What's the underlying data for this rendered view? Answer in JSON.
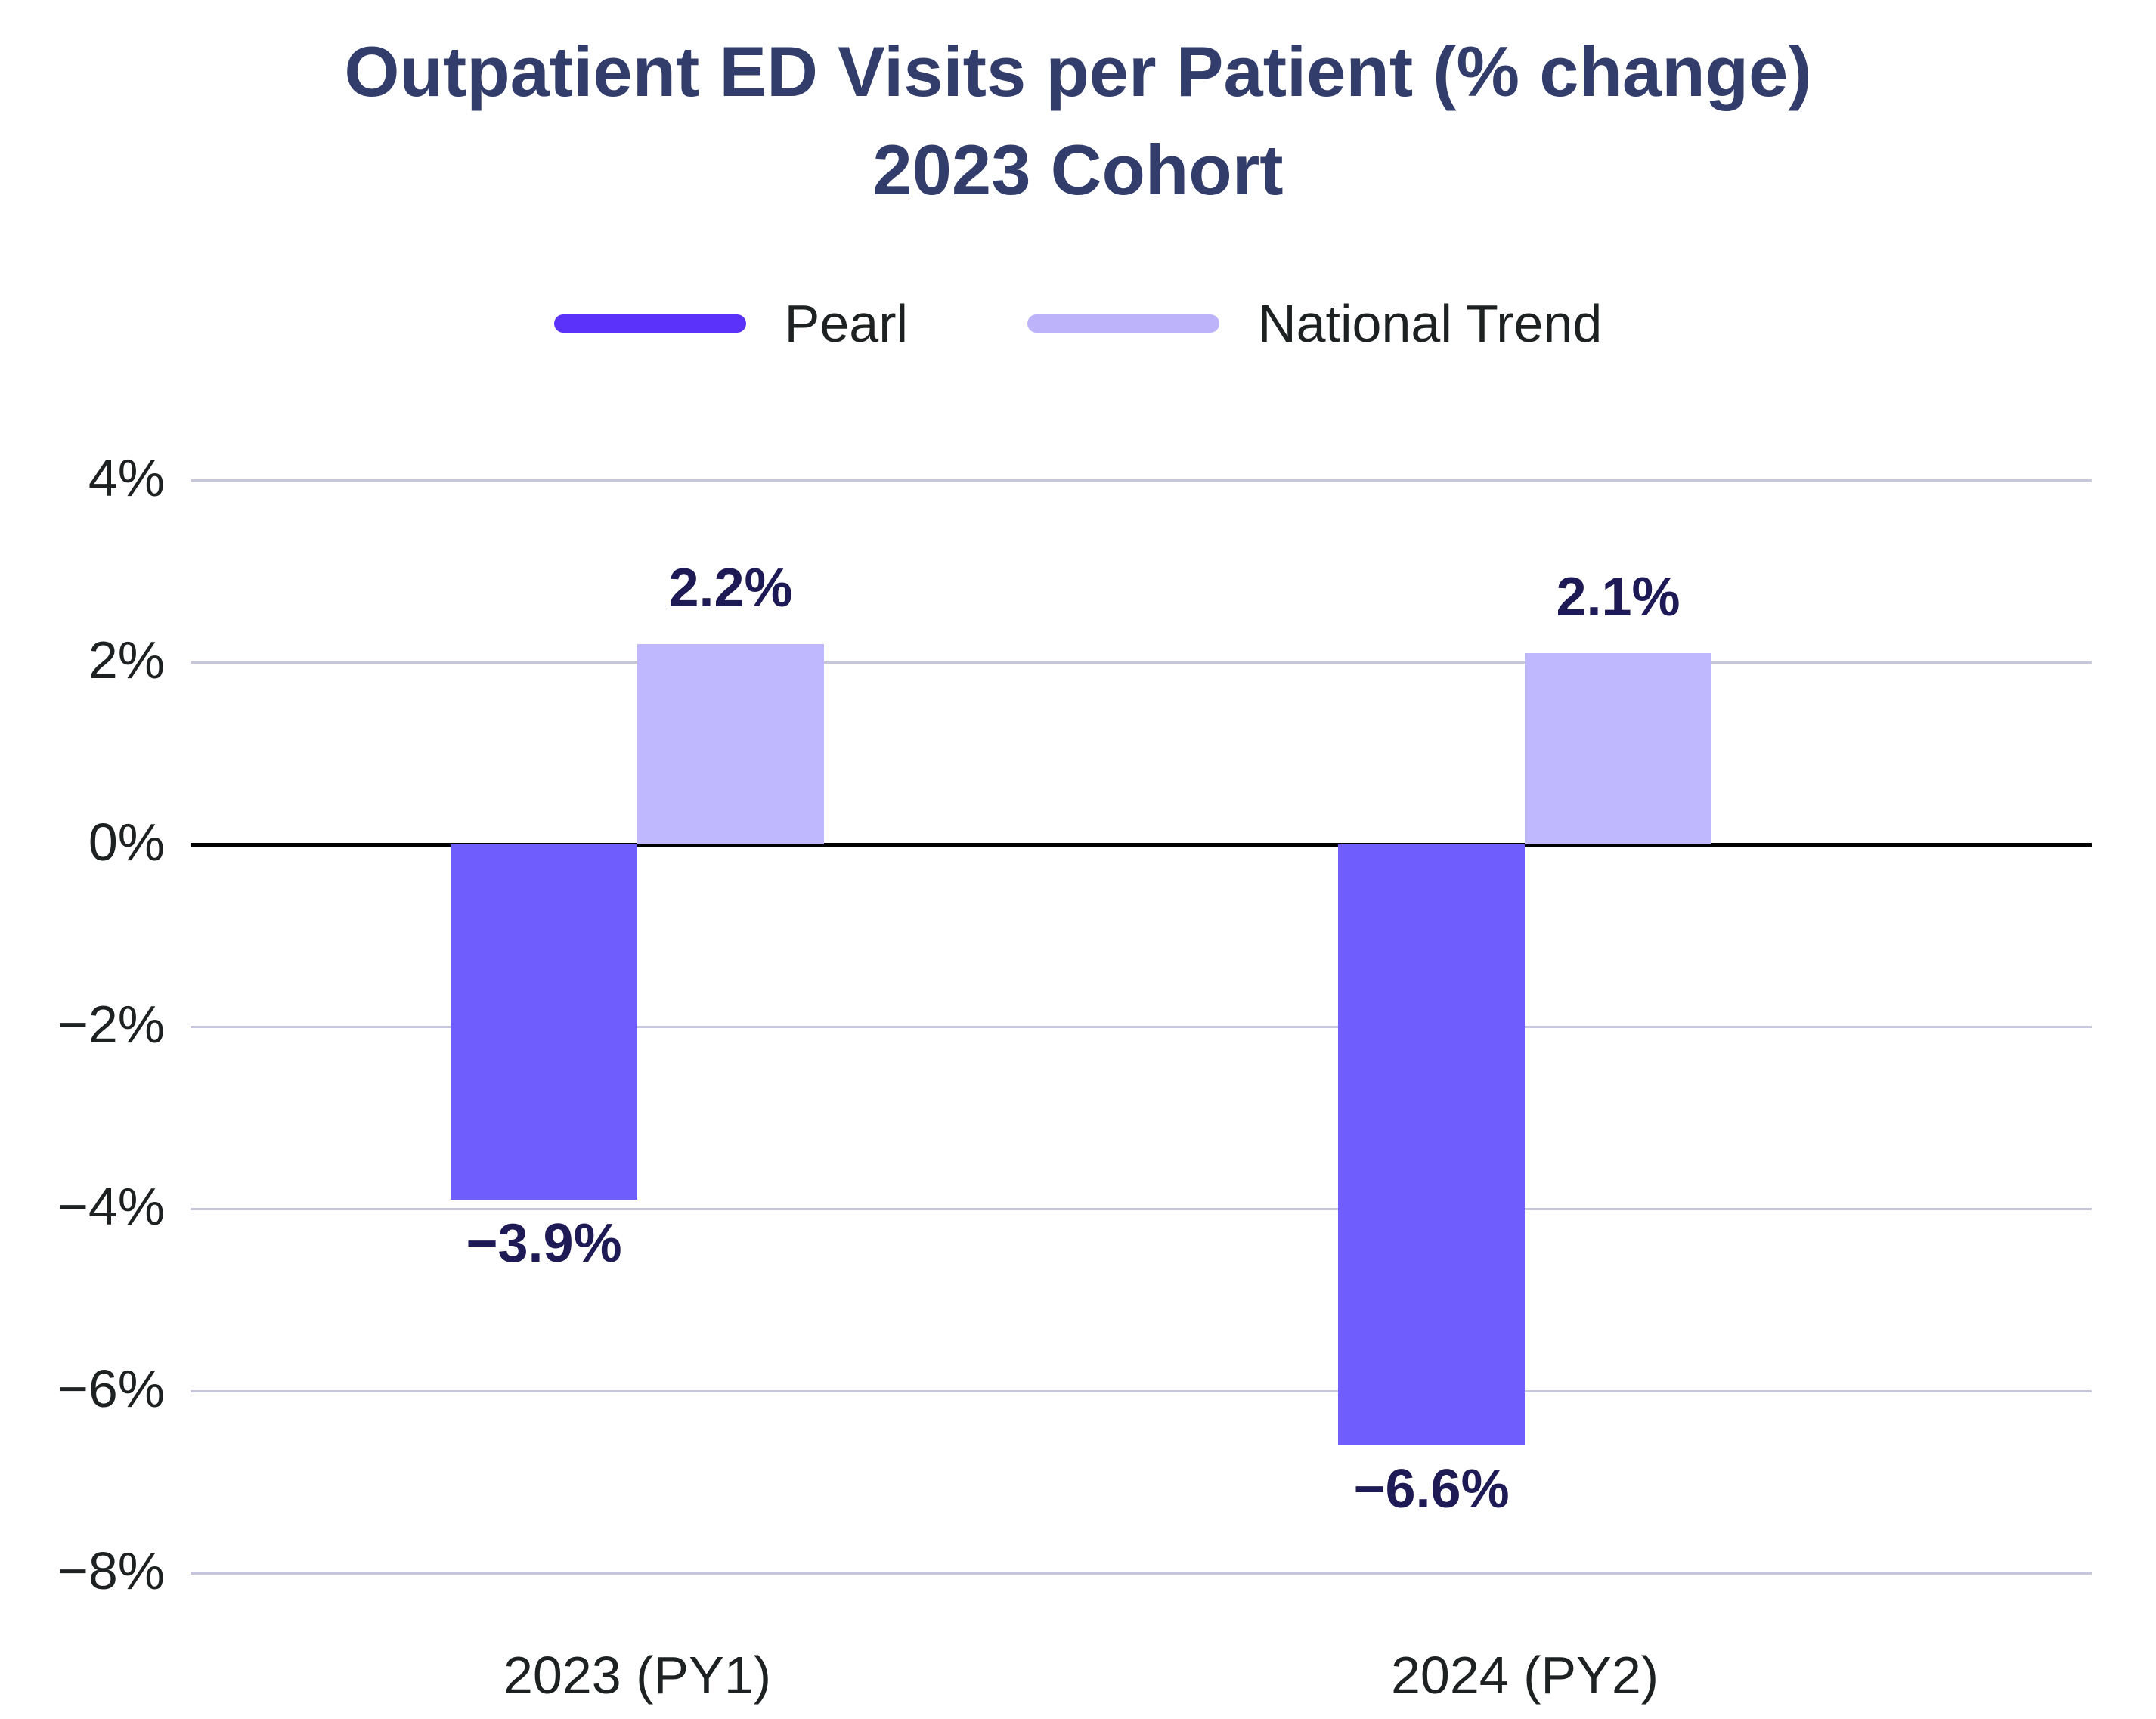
{
  "title": {
    "line1": "Outpatient ED Visits per Patient (% change)",
    "line2": "2023 Cohort"
  },
  "legend": [
    {
      "label": "Pearl",
      "color": "#5A32FA"
    },
    {
      "label": "National Trend",
      "color": "#BDB3FB"
    }
  ],
  "colors": {
    "title": "#333D6B",
    "axis_text": "#1E2121",
    "value_label": "#1E1A55",
    "gridline": "#C5C6DB",
    "zero_line": "#000000",
    "pearl_bar": "#6F5DFD",
    "national_bar": "#C0B8FE"
  },
  "chart_data": {
    "type": "bar",
    "title": "Outpatient ED Visits per Patient (% change) 2023 Cohort",
    "xlabel": "",
    "ylabel": "",
    "categories": [
      "2023 (PY1)",
      "2024 (PY2)"
    ],
    "series": [
      {
        "name": "Pearl",
        "values": [
          -3.9,
          -6.6
        ],
        "labels": [
          "−3.9%",
          "−6.6%"
        ],
        "color": "#6F5DFD"
      },
      {
        "name": "National Trend",
        "values": [
          2.2,
          2.1
        ],
        "labels": [
          "2.2%",
          "2.1%"
        ],
        "color": "#C0B8FE"
      }
    ],
    "ylim": [
      -8,
      4
    ],
    "ytick_step": 2,
    "ytick_labels": [
      "4%",
      "2%",
      "0%",
      "−2%",
      "−4%",
      "−6%",
      "−8%"
    ],
    "grid": true,
    "legend_position": "top",
    "layout": {
      "group_center_fractions": [
        0.235,
        0.7018
      ],
      "bar_width_fraction": 0.0982
    }
  }
}
